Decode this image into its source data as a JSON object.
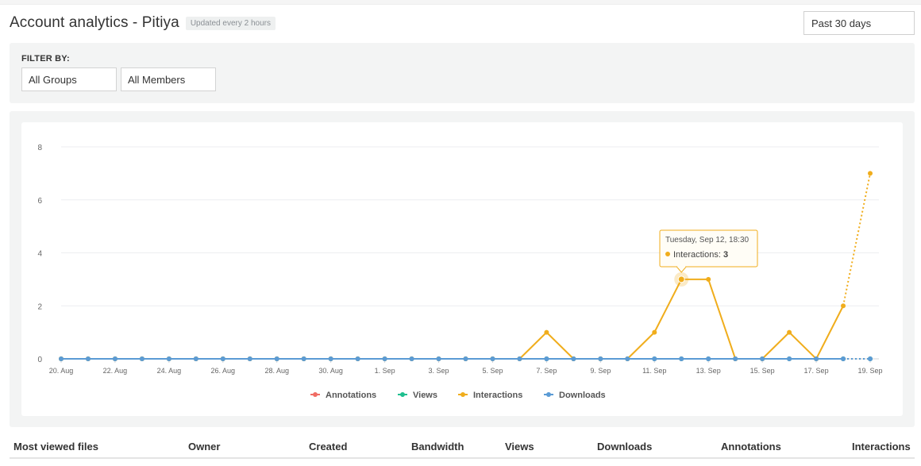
{
  "header": {
    "title": "Account analytics - Pitiya",
    "badge": "Updated every 2 hours"
  },
  "range_select": {
    "value": "Past 30 days"
  },
  "filter": {
    "label": "FILTER BY:",
    "groups_value": "All Groups",
    "members_value": "All Members"
  },
  "colors": {
    "annotations": "#f06c64",
    "views": "#1fbf8f",
    "interactions": "#f0ad1c",
    "downloads": "#5b9bd5"
  },
  "chart_data": {
    "type": "line",
    "x": [
      "2023-08-20",
      "2023-08-21",
      "2023-08-22",
      "2023-08-23",
      "2023-08-24",
      "2023-08-25",
      "2023-08-26",
      "2023-08-27",
      "2023-08-28",
      "2023-08-29",
      "2023-08-30",
      "2023-08-31",
      "2023-09-01",
      "2023-09-02",
      "2023-09-03",
      "2023-09-04",
      "2023-09-05",
      "2023-09-06",
      "2023-09-07",
      "2023-09-08",
      "2023-09-09",
      "2023-09-10",
      "2023-09-11",
      "2023-09-12",
      "2023-09-13",
      "2023-09-14",
      "2023-09-15",
      "2023-09-16",
      "2023-09-17",
      "2023-09-18",
      "2023-09-19"
    ],
    "x_tick_labels": [
      "20. Aug",
      "22. Aug",
      "24. Aug",
      "26. Aug",
      "28. Aug",
      "30. Aug",
      "1. Sep",
      "3. Sep",
      "5. Sep",
      "7. Sep",
      "9. Sep",
      "11. Sep",
      "13. Sep",
      "15. Sep",
      "17. Sep",
      "19. Sep"
    ],
    "y_ticks": [
      0,
      2,
      4,
      6,
      8
    ],
    "ylim": [
      0,
      8
    ],
    "grid": true,
    "legend_position": "bottom",
    "series": [
      {
        "name": "Annotations",
        "values": [
          0,
          0,
          0,
          0,
          0,
          0,
          0,
          0,
          0,
          0,
          0,
          0,
          0,
          0,
          0,
          0,
          0,
          0,
          0,
          0,
          0,
          0,
          0,
          0,
          0,
          0,
          0,
          0,
          0,
          0,
          0
        ]
      },
      {
        "name": "Views",
        "values": [
          0,
          0,
          0,
          0,
          0,
          0,
          0,
          0,
          0,
          0,
          0,
          0,
          0,
          0,
          0,
          0,
          0,
          0,
          0,
          0,
          0,
          0,
          0,
          0,
          0,
          0,
          0,
          0,
          0,
          0,
          0
        ]
      },
      {
        "name": "Interactions",
        "values": [
          0,
          0,
          0,
          0,
          0,
          0,
          0,
          0,
          0,
          0,
          0,
          0,
          0,
          0,
          0,
          0,
          0,
          0,
          1,
          0,
          0,
          0,
          1,
          3,
          3,
          0,
          0,
          1,
          0,
          2,
          7
        ]
      },
      {
        "name": "Downloads",
        "values": [
          0,
          0,
          0,
          0,
          0,
          0,
          0,
          0,
          0,
          0,
          0,
          0,
          0,
          0,
          0,
          0,
          0,
          0,
          0,
          0,
          0,
          0,
          0,
          0,
          0,
          0,
          0,
          0,
          0,
          0,
          0
        ]
      }
    ],
    "tooltip": {
      "date": "Tuesday, Sep 12, 18:30",
      "series": "Interactions",
      "value": "3"
    }
  },
  "table": {
    "columns": [
      "Most viewed files",
      "Owner",
      "Created",
      "Bandwidth",
      "Views",
      "Downloads",
      "Annotations",
      "Interactions"
    ]
  }
}
